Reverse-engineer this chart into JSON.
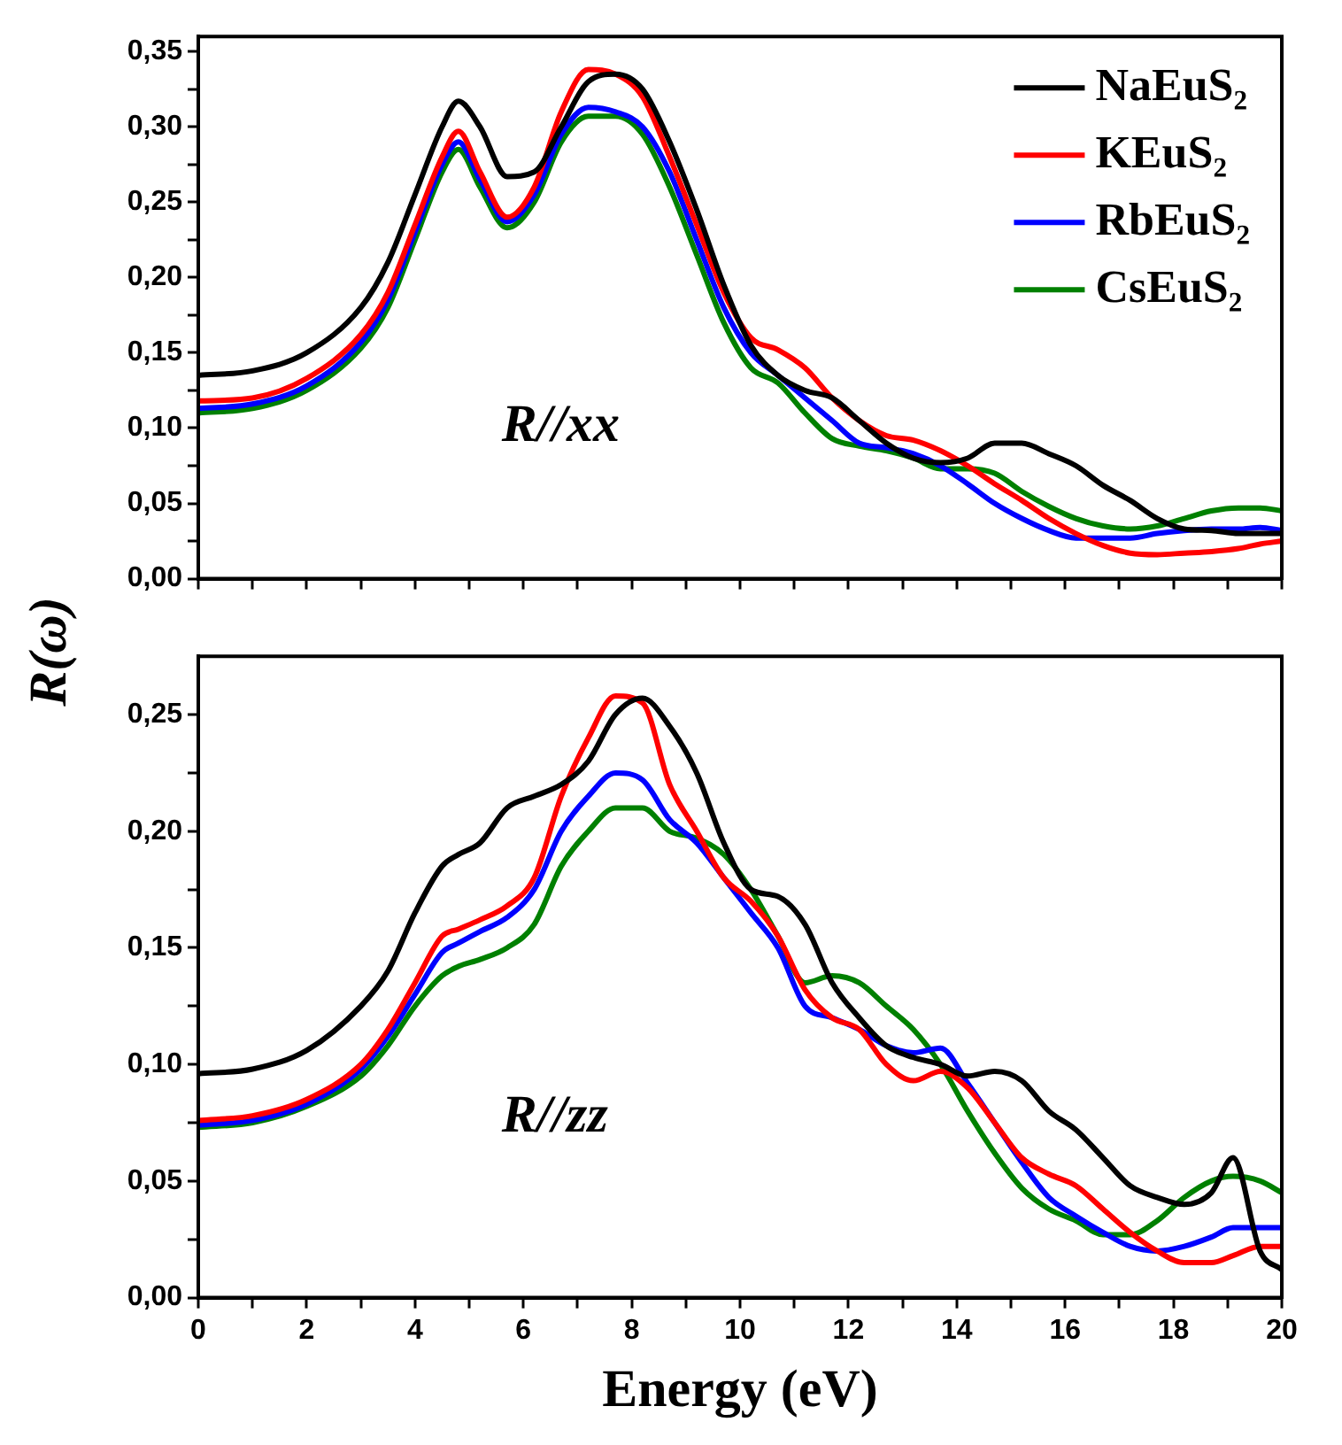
{
  "chart_data": [
    {
      "type": "line",
      "ylabel": "R(ω)",
      "annotations": [
        "R//xx"
      ],
      "legend": "top right",
      "marker": "none",
      "line_style": "solid",
      "grid": false,
      "tick_labels": "y",
      "xlim": [
        0,
        20
      ],
      "xticks": [
        0,
        {
          "value": 1,
          "label": null
        },
        2,
        {
          "value": 3,
          "label": null
        },
        4,
        {
          "value": 5,
          "label": null
        },
        6,
        {
          "value": 7,
          "label": null
        },
        8,
        {
          "value": 9,
          "label": null
        },
        10,
        {
          "value": 11,
          "label": null
        },
        12,
        {
          "value": 13,
          "label": null
        },
        14,
        {
          "value": 15,
          "label": null
        },
        16,
        {
          "value": 17,
          "label": null
        },
        18,
        {
          "value": 19,
          "label": null
        },
        20
      ],
      "ylim": [
        0,
        0.36
      ],
      "yticks": [
        {
          "value": 0,
          "label": "0,00"
        },
        {
          "value": 0.025,
          "label": null
        },
        {
          "value": 0.05,
          "label": "0,05"
        },
        {
          "value": 0.075,
          "label": null
        },
        {
          "value": 0.1,
          "label": "0,10"
        },
        {
          "value": 0.125,
          "label": null
        },
        {
          "value": 0.15,
          "label": "0,15"
        },
        {
          "value": 0.175,
          "label": null
        },
        {
          "value": 0.2,
          "label": "0,20"
        },
        {
          "value": 0.225,
          "label": null
        },
        {
          "value": 0.25,
          "label": "0,25"
        },
        {
          "value": 0.275,
          "label": null
        },
        {
          "value": 0.3,
          "label": "0,30"
        },
        {
          "value": 0.325,
          "label": null
        },
        {
          "value": 0.35,
          "label": "0,35"
        }
      ],
      "x": [
        0,
        1,
        2,
        3,
        3.5,
        4,
        4.5,
        4.8,
        5.2,
        5.7,
        6.2,
        6.7,
        7.2,
        7.7,
        8.2,
        8.7,
        9.2,
        9.7,
        10.2,
        10.7,
        11.2,
        11.7,
        12.2,
        12.7,
        13.2,
        13.7,
        14.2,
        14.7,
        15.2,
        15.7,
        16.2,
        16.7,
        17.2,
        17.7,
        18.2,
        18.7,
        19.2,
        19.6,
        20
      ],
      "series": [
        {
          "name": "NaEuS₂",
          "color": "#000000",
          "values": [
            0.135,
            0.138,
            0.15,
            0.18,
            0.21,
            0.255,
            0.3,
            0.317,
            0.3,
            0.267,
            0.27,
            0.3,
            0.33,
            0.335,
            0.325,
            0.29,
            0.245,
            0.195,
            0.155,
            0.135,
            0.125,
            0.12,
            0.105,
            0.09,
            0.08,
            0.077,
            0.08,
            0.09,
            0.09,
            0.083,
            0.075,
            0.062,
            0.052,
            0.04,
            0.033,
            0.032,
            0.03,
            0.03,
            0.03
          ]
        },
        {
          "name": "KEuS₂",
          "color": "#ff0000",
          "values": [
            0.118,
            0.12,
            0.133,
            0.162,
            0.19,
            0.235,
            0.28,
            0.297,
            0.27,
            0.24,
            0.26,
            0.31,
            0.338,
            0.335,
            0.32,
            0.28,
            0.235,
            0.19,
            0.16,
            0.152,
            0.14,
            0.12,
            0.105,
            0.095,
            0.092,
            0.085,
            0.075,
            0.063,
            0.052,
            0.04,
            0.03,
            0.022,
            0.017,
            0.016,
            0.017,
            0.018,
            0.02,
            0.023,
            0.025
          ]
        },
        {
          "name": "RbEuS₂",
          "color": "#0000ff",
          "values": [
            0.113,
            0.116,
            0.128,
            0.157,
            0.185,
            0.23,
            0.275,
            0.29,
            0.265,
            0.237,
            0.255,
            0.295,
            0.313,
            0.31,
            0.3,
            0.27,
            0.225,
            0.18,
            0.15,
            0.135,
            0.12,
            0.105,
            0.09,
            0.087,
            0.083,
            0.075,
            0.063,
            0.05,
            0.04,
            0.032,
            0.027,
            0.027,
            0.027,
            0.03,
            0.032,
            0.033,
            0.033,
            0.034,
            0.032
          ]
        },
        {
          "name": "CsEuS₂",
          "color": "#008000",
          "values": [
            0.11,
            0.113,
            0.125,
            0.153,
            0.18,
            0.225,
            0.27,
            0.285,
            0.26,
            0.233,
            0.25,
            0.29,
            0.307,
            0.307,
            0.295,
            0.26,
            0.215,
            0.17,
            0.14,
            0.13,
            0.11,
            0.093,
            0.088,
            0.085,
            0.08,
            0.073,
            0.073,
            0.07,
            0.058,
            0.048,
            0.04,
            0.035,
            0.033,
            0.035,
            0.04,
            0.045,
            0.047,
            0.047,
            0.045
          ]
        }
      ]
    },
    {
      "type": "line",
      "xlabel": "Energy (eV)",
      "annotations": [
        "R//zz"
      ],
      "marker": "none",
      "line_style": "solid",
      "grid": false,
      "xlim": [
        0,
        20
      ],
      "xticks": [
        0,
        {
          "value": 1,
          "label": null
        },
        2,
        {
          "value": 3,
          "label": null
        },
        4,
        {
          "value": 5,
          "label": null
        },
        6,
        {
          "value": 7,
          "label": null
        },
        8,
        {
          "value": 9,
          "label": null
        },
        10,
        {
          "value": 11,
          "label": null
        },
        12,
        {
          "value": 13,
          "label": null
        },
        14,
        {
          "value": 15,
          "label": null
        },
        16,
        {
          "value": 17,
          "label": null
        },
        18,
        {
          "value": 19,
          "label": null
        },
        20
      ],
      "ylim": [
        0,
        0.275
      ],
      "yticks": [
        {
          "value": 0,
          "label": "0,00"
        },
        {
          "value": 0.025,
          "label": null
        },
        {
          "value": 0.05,
          "label": "0,05"
        },
        {
          "value": 0.075,
          "label": null
        },
        {
          "value": 0.1,
          "label": "0,10"
        },
        {
          "value": 0.125,
          "label": null
        },
        {
          "value": 0.15,
          "label": "0,15"
        },
        {
          "value": 0.175,
          "label": null
        },
        {
          "value": 0.2,
          "label": "0,20"
        },
        {
          "value": 0.225,
          "label": null
        },
        {
          "value": 0.25,
          "label": "0,25"
        }
      ],
      "x": [
        0,
        1,
        2,
        3,
        3.5,
        4,
        4.5,
        4.8,
        5.2,
        5.7,
        6.2,
        6.7,
        7.2,
        7.7,
        8.2,
        8.7,
        9.2,
        9.7,
        10.2,
        10.7,
        11.2,
        11.7,
        12.2,
        12.7,
        13.2,
        13.7,
        14.2,
        14.7,
        15.2,
        15.7,
        16.2,
        16.7,
        17.2,
        17.7,
        18.2,
        18.7,
        19.1,
        19.6,
        20
      ],
      "series": [
        {
          "color": "#000000",
          "values": [
            0.096,
            0.098,
            0.106,
            0.125,
            0.14,
            0.165,
            0.185,
            0.19,
            0.195,
            0.21,
            0.215,
            0.22,
            0.23,
            0.25,
            0.257,
            0.245,
            0.225,
            0.195,
            0.175,
            0.172,
            0.16,
            0.135,
            0.12,
            0.108,
            0.103,
            0.1,
            0.095,
            0.097,
            0.093,
            0.08,
            0.072,
            0.06,
            0.048,
            0.043,
            0.04,
            0.045,
            0.06,
            0.02,
            0.012
          ]
        },
        {
          "color": "#ff0000",
          "values": [
            0.076,
            0.078,
            0.085,
            0.1,
            0.115,
            0.135,
            0.155,
            0.158,
            0.162,
            0.168,
            0.18,
            0.215,
            0.24,
            0.258,
            0.255,
            0.22,
            0.2,
            0.18,
            0.17,
            0.155,
            0.132,
            0.12,
            0.115,
            0.1,
            0.093,
            0.097,
            0.09,
            0.075,
            0.06,
            0.053,
            0.048,
            0.038,
            0.028,
            0.02,
            0.015,
            0.015,
            0.018,
            0.022,
            0.022
          ]
        },
        {
          "color": "#0000ff",
          "values": [
            0.074,
            0.076,
            0.083,
            0.098,
            0.112,
            0.13,
            0.148,
            0.152,
            0.157,
            0.163,
            0.175,
            0.2,
            0.215,
            0.225,
            0.222,
            0.205,
            0.195,
            0.18,
            0.165,
            0.15,
            0.125,
            0.12,
            0.115,
            0.108,
            0.105,
            0.107,
            0.092,
            0.075,
            0.058,
            0.043,
            0.035,
            0.028,
            0.022,
            0.02,
            0.022,
            0.026,
            0.03,
            0.03,
            0.03
          ]
        },
        {
          "color": "#008000",
          "values": [
            0.073,
            0.075,
            0.082,
            0.095,
            0.108,
            0.125,
            0.138,
            0.142,
            0.145,
            0.15,
            0.16,
            0.185,
            0.2,
            0.21,
            0.21,
            0.2,
            0.197,
            0.19,
            0.175,
            0.155,
            0.135,
            0.138,
            0.135,
            0.125,
            0.115,
            0.1,
            0.08,
            0.062,
            0.047,
            0.038,
            0.033,
            0.027,
            0.027,
            0.033,
            0.043,
            0.05,
            0.052,
            0.05,
            0.045
          ]
        }
      ]
    }
  ]
}
